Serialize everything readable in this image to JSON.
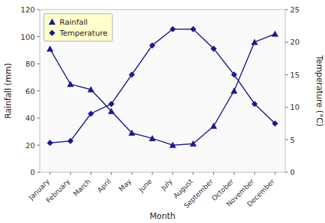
{
  "chart_data": {
    "type": "line",
    "categories": [
      "January",
      "February",
      "March",
      "April",
      "May",
      "June",
      "July",
      "August",
      "September",
      "October",
      "November",
      "December"
    ],
    "xlabel": "Month",
    "ylabel": "Rainfall (mm)",
    "y2label": "Temperature (°C)",
    "series": [
      {
        "name": "Rainfall",
        "color": "#1a1a8c",
        "marker": "triangle",
        "values": [
          91,
          65,
          61,
          45,
          29,
          25,
          20,
          21,
          34,
          60,
          96,
          102
        ]
      },
      {
        "name": "Temperature",
        "color": "#1a1a8c",
        "marker": "diamond",
        "axis": "y2",
        "values": [
          4.5,
          4.8,
          9.0,
          10.5,
          15.0,
          19.5,
          22.0,
          22.0,
          19.0,
          15.0,
          10.5,
          7.5
        ]
      }
    ],
    "ylim": [
      0,
      120
    ],
    "yticks": [
      0,
      20,
      40,
      60,
      80,
      100,
      120
    ],
    "y2lim": [
      0,
      25
    ],
    "y2ticks": [
      0,
      5,
      10,
      15,
      20,
      25
    ],
    "legend": "upper-left",
    "grid": false
  }
}
